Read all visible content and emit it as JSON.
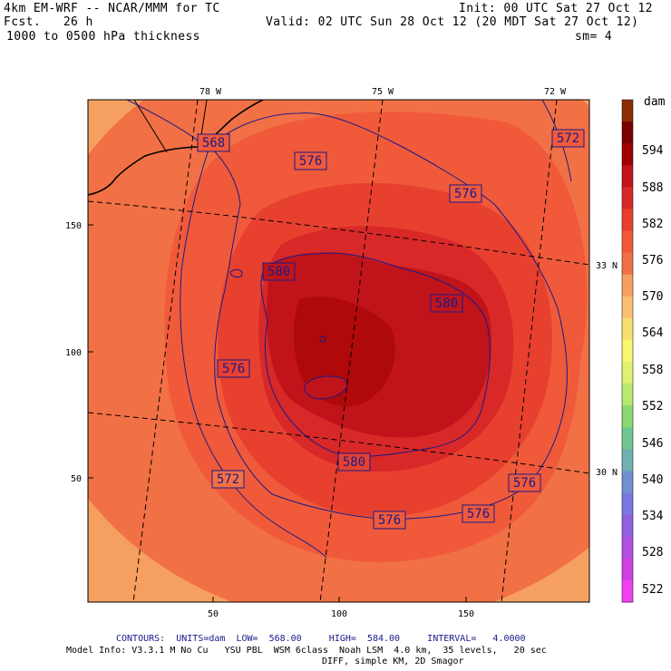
{
  "header": {
    "model": "4km EM-WRF -- NCAR/MMM for TC",
    "init": "Init: 00 UTC Sat 27 Oct 12",
    "fcst": "Fcst.   26 h",
    "valid": "Valid: 02 UTC Sun 28 Oct 12 (20 MDT Sat 27 Oct 12)",
    "field": "1000 to 0500 hPa thickness",
    "smoothing": "sm= 4"
  },
  "map": {
    "lon_labels": [
      "78 W",
      "75 W",
      "72 W"
    ],
    "lat_labels": [
      "33 N",
      "30 N"
    ],
    "x_ticks": [
      "50",
      "100",
      "150"
    ],
    "y_ticks": [
      "150",
      "100",
      "50"
    ],
    "contour_labels": [
      {
        "text": "568",
        "value": 568
      },
      {
        "text": "576",
        "value": 576
      },
      {
        "text": "576",
        "value": 576
      },
      {
        "text": "572",
        "value": 572
      },
      {
        "text": "580",
        "value": 580
      },
      {
        "text": "580",
        "value": 580
      },
      {
        "text": "576",
        "value": 576
      },
      {
        "text": "580",
        "value": 580
      },
      {
        "text": "572",
        "value": 572
      },
      {
        "text": "576",
        "value": 576
      },
      {
        "text": "576",
        "value": 576
      },
      {
        "text": "576",
        "value": 576
      }
    ]
  },
  "colorbar": {
    "unit": "dam",
    "labels": [
      "594",
      "588",
      "582",
      "576",
      "570",
      "564",
      "558",
      "552",
      "546",
      "540",
      "534",
      "528",
      "522"
    ],
    "colors": [
      "#8c2d04",
      "#7a0000",
      "#a00000",
      "#c0141a",
      "#d82828",
      "#e8402f",
      "#f05a3a",
      "#f27045",
      "#f5a060",
      "#f8c070",
      "#f6e070",
      "#f8f870",
      "#e0f070",
      "#b8e870",
      "#8cd870",
      "#70c890",
      "#70b0b0",
      "#7090d0",
      "#7878e0",
      "#9060e0",
      "#b050e0",
      "#d040e0",
      "#f040f0"
    ]
  },
  "footer": {
    "contours_title": "CONTOURS:",
    "contours_info": "UNITS=dam  LOW=  568.00     HIGH=  584.00     INTERVAL=   4.0000",
    "model_info": "Model Info: V3.3.1 M No Cu   YSU PBL  WSM 6class  Noah LSM  4.0 km,  35 levels,   20 sec",
    "model_info2": "DIFF, simple KM, 2D Smagor"
  }
}
